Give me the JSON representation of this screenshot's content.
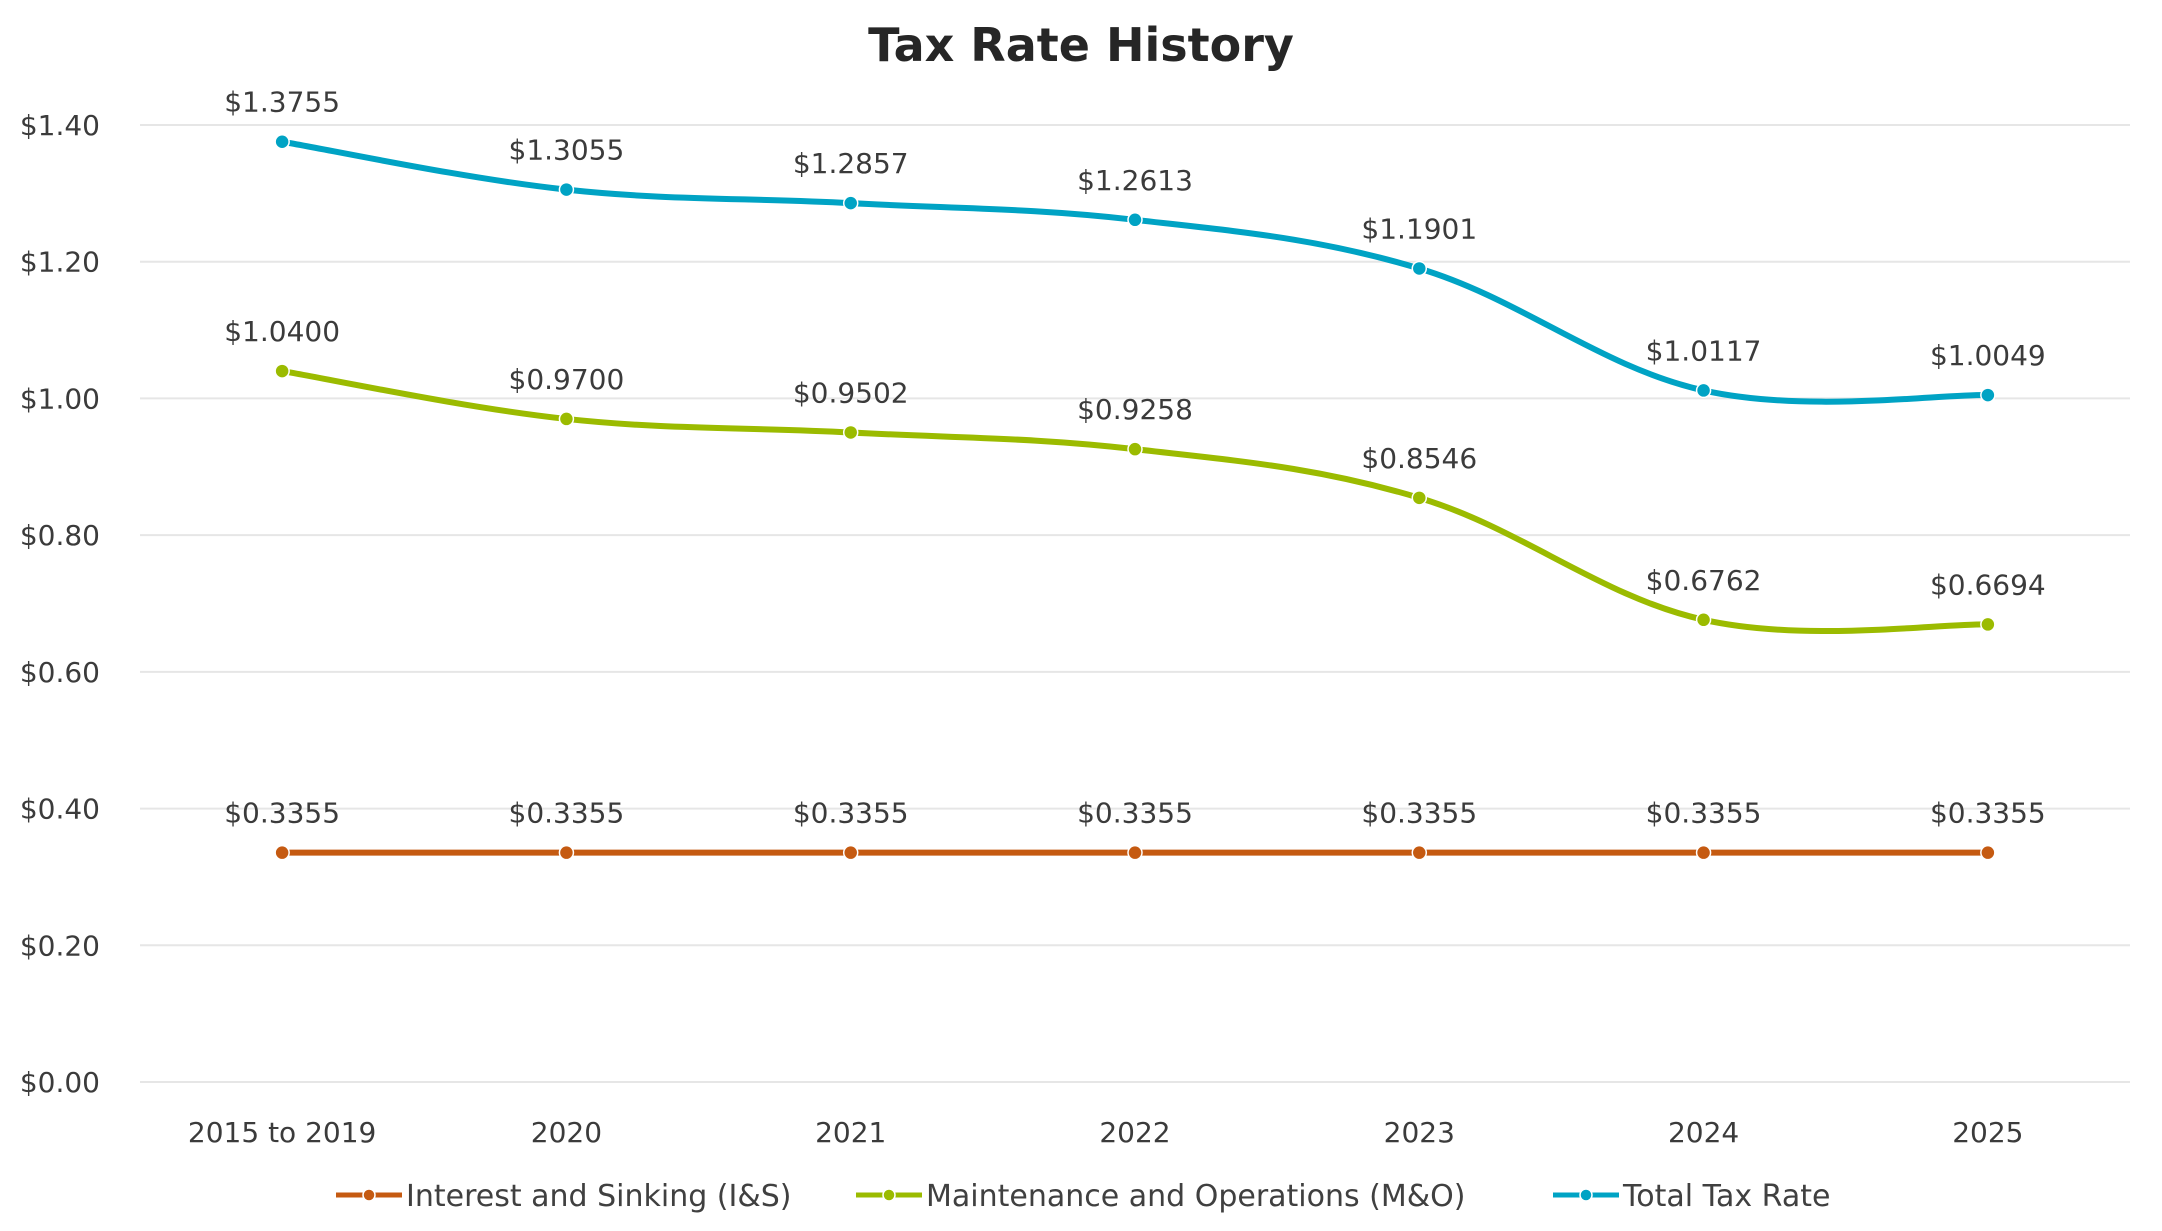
{
  "chart_data": {
    "type": "line",
    "title": "Tax Rate History",
    "xlabel": "",
    "ylabel": "",
    "categories": [
      "2015 to 2019",
      "2020",
      "2021",
      "2022",
      "2023",
      "2024",
      "2025"
    ],
    "ylim": [
      0,
      1.4
    ],
    "yticks": [
      0,
      0.2,
      0.4,
      0.6,
      0.8,
      1.0,
      1.2,
      1.4
    ],
    "ytick_labels": [
      "$0.00",
      "$0.20",
      "$0.40",
      "$0.60",
      "$0.80",
      "$1.00",
      "$1.20",
      "$1.40"
    ],
    "grid": true,
    "smooth": true,
    "legend_position": "bottom",
    "series": [
      {
        "name": "Interest and Sinking (I&S)",
        "color": "#C55A11",
        "values": [
          0.3355,
          0.3355,
          0.3355,
          0.3355,
          0.3355,
          0.3355,
          0.3355
        ],
        "labels": [
          "$0.3355",
          "$0.3355",
          "$0.3355",
          "$0.3355",
          "$0.3355",
          "$0.3355",
          "$0.3355"
        ]
      },
      {
        "name": "Maintenance and Operations (M&O)",
        "color": "#9BBB00",
        "values": [
          1.04,
          0.97,
          0.9502,
          0.9258,
          0.8546,
          0.6762,
          0.6694
        ],
        "labels": [
          "$1.0400",
          "$0.9700",
          "$0.9502",
          "$0.9258",
          "$0.8546",
          "$0.6762",
          "$0.6694"
        ]
      },
      {
        "name": "Total Tax Rate",
        "color": "#00A3C4",
        "values": [
          1.3755,
          1.3055,
          1.2857,
          1.2613,
          1.1901,
          1.0117,
          1.0049
        ],
        "labels": [
          "$1.3755",
          "$1.3055",
          "$1.2857",
          "$1.2613",
          "$1.1901",
          "$1.0117",
          "$1.0049"
        ]
      }
    ]
  }
}
